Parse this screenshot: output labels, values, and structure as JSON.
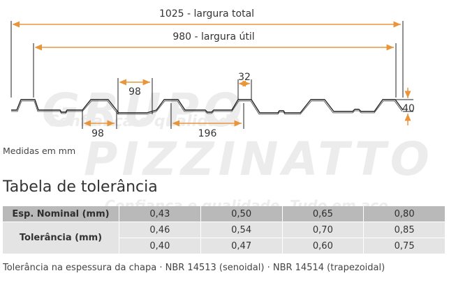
{
  "diagram": {
    "total_width_label": "1025 - largura total",
    "useful_width_label": "980 - largura útil",
    "dim_98_top": "98",
    "dim_98_bottom": "98",
    "dim_196": "196",
    "dim_32": "32",
    "dim_40": "40",
    "colors": {
      "dimension": "#e8963c",
      "profile": "#222222"
    }
  },
  "watermark": {
    "line1": "GRUPO",
    "line2": "PIZZINATTO",
    "tagline1": "Confiança e qualidade",
    "tagline2": "Confiança e qualidade. Tudo em aço."
  },
  "units_note": "Medidas em mm",
  "section_title": "Tabela de tolerância",
  "table": {
    "header_label": "Esp. Nominal (mm)",
    "header_values": [
      "0,43",
      "0,50",
      "0,65",
      "0,80"
    ],
    "row_label": "Tolerância (mm)",
    "rows": [
      [
        "0,46",
        "0,54",
        "0,70",
        "0,85"
      ],
      [
        "0,40",
        "0,47",
        "0,60",
        "0,75"
      ]
    ]
  },
  "footnote": "Tolerância na espessura da chapa · NBR 14513 (senoidal) · NBR 14514 (trapezoidal)"
}
